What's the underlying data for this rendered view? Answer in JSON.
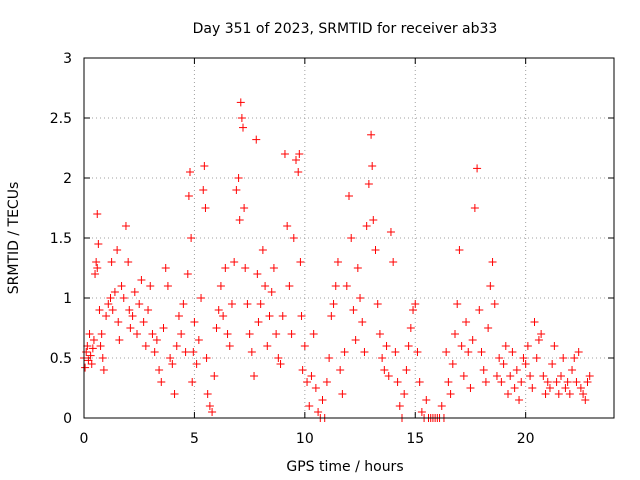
{
  "chart_data": {
    "type": "scatter",
    "title": "Day 351 of 2023, SRMTID for receiver ab33",
    "xlabel": "GPS time / hours",
    "ylabel": "SRMTID / TECUs",
    "xlim": [
      0,
      24
    ],
    "ylim": [
      0,
      3
    ],
    "xticks": [
      0,
      5,
      10,
      15,
      20
    ],
    "yticks": [
      0,
      0.5,
      1,
      1.5,
      2,
      2.5,
      3
    ],
    "xtick_labels": [
      "0",
      "5",
      "10",
      "15",
      "20"
    ],
    "ytick_labels": [
      "0",
      "0.5",
      "1",
      "1.5",
      "2",
      "2.5",
      "3"
    ],
    "grid": true,
    "marker": "+",
    "color": "#ff0000",
    "series": [
      {
        "name": "SRMTID",
        "points": [
          [
            0.0,
            0.5
          ],
          [
            0.05,
            0.42
          ],
          [
            0.1,
            0.55
          ],
          [
            0.15,
            0.6
          ],
          [
            0.2,
            0.48
          ],
          [
            0.25,
            0.7
          ],
          [
            0.3,
            0.52
          ],
          [
            0.35,
            0.45
          ],
          [
            0.4,
            0.58
          ],
          [
            0.45,
            0.65
          ],
          [
            0.5,
            1.2
          ],
          [
            0.55,
            1.3
          ],
          [
            0.6,
            1.7
          ],
          [
            0.6,
            1.25
          ],
          [
            0.65,
            1.45
          ],
          [
            0.7,
            0.9
          ],
          [
            0.75,
            0.6
          ],
          [
            0.8,
            0.7
          ],
          [
            0.85,
            0.5
          ],
          [
            0.9,
            0.4
          ],
          [
            1.0,
            0.85
          ],
          [
            1.1,
            0.95
          ],
          [
            1.2,
            1.0
          ],
          [
            1.25,
            1.3
          ],
          [
            1.3,
            0.9
          ],
          [
            1.4,
            1.05
          ],
          [
            1.5,
            1.4
          ],
          [
            1.55,
            0.8
          ],
          [
            1.6,
            0.65
          ],
          [
            1.7,
            1.1
          ],
          [
            1.8,
            1.0
          ],
          [
            1.9,
            1.6
          ],
          [
            2.0,
            1.3
          ],
          [
            2.05,
            0.9
          ],
          [
            2.1,
            0.75
          ],
          [
            2.2,
            0.85
          ],
          [
            2.3,
            1.05
          ],
          [
            2.4,
            0.7
          ],
          [
            2.5,
            0.95
          ],
          [
            2.6,
            1.15
          ],
          [
            2.7,
            0.8
          ],
          [
            2.8,
            0.6
          ],
          [
            2.9,
            0.9
          ],
          [
            3.0,
            1.1
          ],
          [
            3.1,
            0.7
          ],
          [
            3.2,
            0.55
          ],
          [
            3.3,
            0.65
          ],
          [
            3.4,
            0.4
          ],
          [
            3.5,
            0.3
          ],
          [
            3.6,
            0.75
          ],
          [
            3.7,
            1.25
          ],
          [
            3.8,
            1.1
          ],
          [
            3.9,
            0.5
          ],
          [
            4.0,
            0.45
          ],
          [
            4.1,
            0.2
          ],
          [
            4.2,
            0.6
          ],
          [
            4.3,
            0.85
          ],
          [
            4.4,
            0.7
          ],
          [
            4.5,
            0.95
          ],
          [
            4.6,
            0.55
          ],
          [
            4.7,
            1.2
          ],
          [
            4.75,
            1.85
          ],
          [
            4.8,
            2.05
          ],
          [
            4.85,
            1.5
          ],
          [
            4.9,
            0.3
          ],
          [
            4.95,
            0.55
          ],
          [
            5.0,
            0.8
          ],
          [
            5.1,
            0.45
          ],
          [
            5.2,
            0.65
          ],
          [
            5.3,
            1.0
          ],
          [
            5.4,
            1.9
          ],
          [
            5.45,
            2.1
          ],
          [
            5.5,
            1.75
          ],
          [
            5.55,
            0.5
          ],
          [
            5.6,
            0.2
          ],
          [
            5.7,
            0.1
          ],
          [
            5.8,
            0.05
          ],
          [
            5.9,
            0.35
          ],
          [
            6.0,
            0.75
          ],
          [
            6.1,
            0.9
          ],
          [
            6.2,
            1.1
          ],
          [
            6.3,
            0.85
          ],
          [
            6.4,
            1.25
          ],
          [
            6.5,
            0.7
          ],
          [
            6.6,
            0.6
          ],
          [
            6.7,
            0.95
          ],
          [
            6.8,
            1.3
          ],
          [
            6.9,
            1.9
          ],
          [
            7.0,
            2.0
          ],
          [
            7.05,
            1.65
          ],
          [
            7.1,
            2.63
          ],
          [
            7.15,
            2.5
          ],
          [
            7.2,
            2.42
          ],
          [
            7.25,
            1.75
          ],
          [
            7.3,
            1.25
          ],
          [
            7.4,
            0.95
          ],
          [
            7.5,
            0.7
          ],
          [
            7.6,
            0.55
          ],
          [
            7.7,
            0.35
          ],
          [
            7.8,
            2.32
          ],
          [
            7.85,
            1.2
          ],
          [
            7.9,
            0.8
          ],
          [
            8.0,
            0.95
          ],
          [
            8.1,
            1.4
          ],
          [
            8.2,
            1.1
          ],
          [
            8.3,
            0.6
          ],
          [
            8.4,
            0.85
          ],
          [
            8.5,
            1.05
          ],
          [
            8.6,
            1.25
          ],
          [
            8.7,
            0.7
          ],
          [
            8.8,
            0.5
          ],
          [
            8.9,
            0.45
          ],
          [
            9.0,
            0.85
          ],
          [
            9.1,
            2.2
          ],
          [
            9.2,
            1.6
          ],
          [
            9.3,
            1.1
          ],
          [
            9.4,
            0.7
          ],
          [
            9.5,
            1.5
          ],
          [
            9.6,
            2.15
          ],
          [
            9.7,
            2.05
          ],
          [
            9.75,
            2.2
          ],
          [
            9.8,
            1.3
          ],
          [
            9.85,
            0.85
          ],
          [
            9.9,
            0.4
          ],
          [
            10.0,
            0.6
          ],
          [
            10.1,
            0.3
          ],
          [
            10.2,
            0.1
          ],
          [
            10.3,
            0.35
          ],
          [
            10.4,
            0.7
          ],
          [
            10.5,
            0.25
          ],
          [
            10.6,
            0.05
          ],
          [
            10.7,
            0.0
          ],
          [
            10.8,
            0.15
          ],
          [
            10.9,
            0.0
          ],
          [
            11.0,
            0.3
          ],
          [
            11.1,
            0.5
          ],
          [
            11.2,
            0.85
          ],
          [
            11.3,
            0.95
          ],
          [
            11.4,
            1.1
          ],
          [
            11.5,
            1.3
          ],
          [
            11.6,
            0.4
          ],
          [
            11.7,
            0.2
          ],
          [
            11.8,
            0.55
          ],
          [
            11.9,
            1.1
          ],
          [
            12.0,
            1.85
          ],
          [
            12.1,
            1.5
          ],
          [
            12.2,
            0.9
          ],
          [
            12.3,
            0.65
          ],
          [
            12.4,
            1.25
          ],
          [
            12.5,
            1.0
          ],
          [
            12.6,
            0.8
          ],
          [
            12.7,
            0.55
          ],
          [
            12.8,
            1.6
          ],
          [
            12.9,
            1.95
          ],
          [
            13.0,
            2.36
          ],
          [
            13.05,
            2.1
          ],
          [
            13.1,
            1.65
          ],
          [
            13.2,
            1.4
          ],
          [
            13.3,
            0.95
          ],
          [
            13.4,
            0.7
          ],
          [
            13.5,
            0.5
          ],
          [
            13.6,
            0.4
          ],
          [
            13.7,
            0.6
          ],
          [
            13.8,
            0.35
          ],
          [
            13.9,
            1.55
          ],
          [
            14.0,
            1.3
          ],
          [
            14.1,
            0.55
          ],
          [
            14.2,
            0.3
          ],
          [
            14.3,
            0.1
          ],
          [
            14.4,
            0.0
          ],
          [
            14.5,
            0.2
          ],
          [
            14.6,
            0.4
          ],
          [
            14.7,
            0.6
          ],
          [
            14.8,
            0.75
          ],
          [
            14.9,
            0.9
          ],
          [
            15.0,
            0.95
          ],
          [
            15.1,
            0.55
          ],
          [
            15.2,
            0.3
          ],
          [
            15.3,
            0.05
          ],
          [
            15.4,
            0.0
          ],
          [
            15.5,
            0.15
          ],
          [
            15.6,
            0.0
          ],
          [
            15.7,
            0.0
          ],
          [
            15.8,
            0.0
          ],
          [
            15.9,
            0.0
          ],
          [
            16.0,
            0.0
          ],
          [
            16.1,
            0.0
          ],
          [
            16.2,
            0.1
          ],
          [
            16.3,
            0.0
          ],
          [
            16.4,
            0.55
          ],
          [
            16.5,
            0.3
          ],
          [
            16.6,
            0.2
          ],
          [
            16.7,
            0.45
          ],
          [
            16.8,
            0.7
          ],
          [
            16.9,
            0.95
          ],
          [
            17.0,
            1.4
          ],
          [
            17.1,
            0.6
          ],
          [
            17.2,
            0.35
          ],
          [
            17.3,
            0.8
          ],
          [
            17.4,
            0.55
          ],
          [
            17.5,
            0.25
          ],
          [
            17.6,
            0.65
          ],
          [
            17.7,
            1.75
          ],
          [
            17.8,
            2.08
          ],
          [
            17.9,
            0.9
          ],
          [
            18.0,
            0.55
          ],
          [
            18.1,
            0.4
          ],
          [
            18.2,
            0.3
          ],
          [
            18.3,
            0.75
          ],
          [
            18.4,
            1.1
          ],
          [
            18.5,
            1.3
          ],
          [
            18.6,
            0.95
          ],
          [
            18.7,
            0.35
          ],
          [
            18.8,
            0.5
          ],
          [
            18.9,
            0.3
          ],
          [
            19.0,
            0.45
          ],
          [
            19.1,
            0.6
          ],
          [
            19.2,
            0.2
          ],
          [
            19.3,
            0.35
          ],
          [
            19.4,
            0.55
          ],
          [
            19.5,
            0.25
          ],
          [
            19.6,
            0.4
          ],
          [
            19.7,
            0.15
          ],
          [
            19.8,
            0.3
          ],
          [
            19.9,
            0.5
          ],
          [
            20.0,
            0.45
          ],
          [
            20.1,
            0.6
          ],
          [
            20.2,
            0.35
          ],
          [
            20.3,
            0.25
          ],
          [
            20.4,
            0.8
          ],
          [
            20.5,
            0.5
          ],
          [
            20.6,
            0.65
          ],
          [
            20.7,
            0.7
          ],
          [
            20.8,
            0.35
          ],
          [
            20.9,
            0.2
          ],
          [
            21.0,
            0.3
          ],
          [
            21.1,
            0.25
          ],
          [
            21.2,
            0.45
          ],
          [
            21.3,
            0.6
          ],
          [
            21.4,
            0.3
          ],
          [
            21.5,
            0.2
          ],
          [
            21.6,
            0.35
          ],
          [
            21.7,
            0.5
          ],
          [
            21.8,
            0.25
          ],
          [
            21.9,
            0.3
          ],
          [
            22.0,
            0.2
          ],
          [
            22.1,
            0.4
          ],
          [
            22.2,
            0.5
          ],
          [
            22.3,
            0.3
          ],
          [
            22.4,
            0.55
          ],
          [
            22.5,
            0.25
          ],
          [
            22.6,
            0.2
          ],
          [
            22.7,
            0.15
          ],
          [
            22.8,
            0.3
          ],
          [
            22.9,
            0.35
          ]
        ]
      }
    ]
  }
}
